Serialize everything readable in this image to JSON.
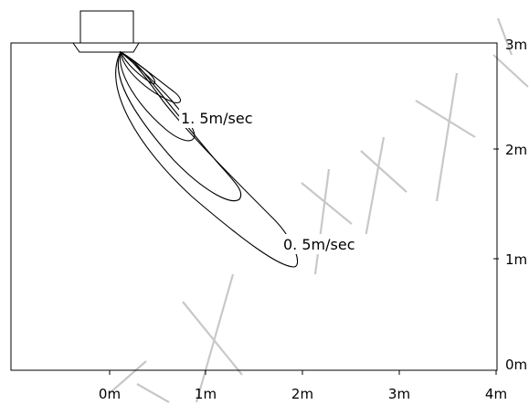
{
  "contour_labels": {
    "inner": "1. 5m/sec",
    "outer": "0. 5m/sec"
  },
  "x_axis": {
    "ticks": [
      "0m",
      "1m",
      "2m",
      "3m",
      "4m"
    ]
  },
  "y_axis": {
    "ticks": [
      "3m",
      "2m",
      "1m",
      "0m"
    ]
  }
}
